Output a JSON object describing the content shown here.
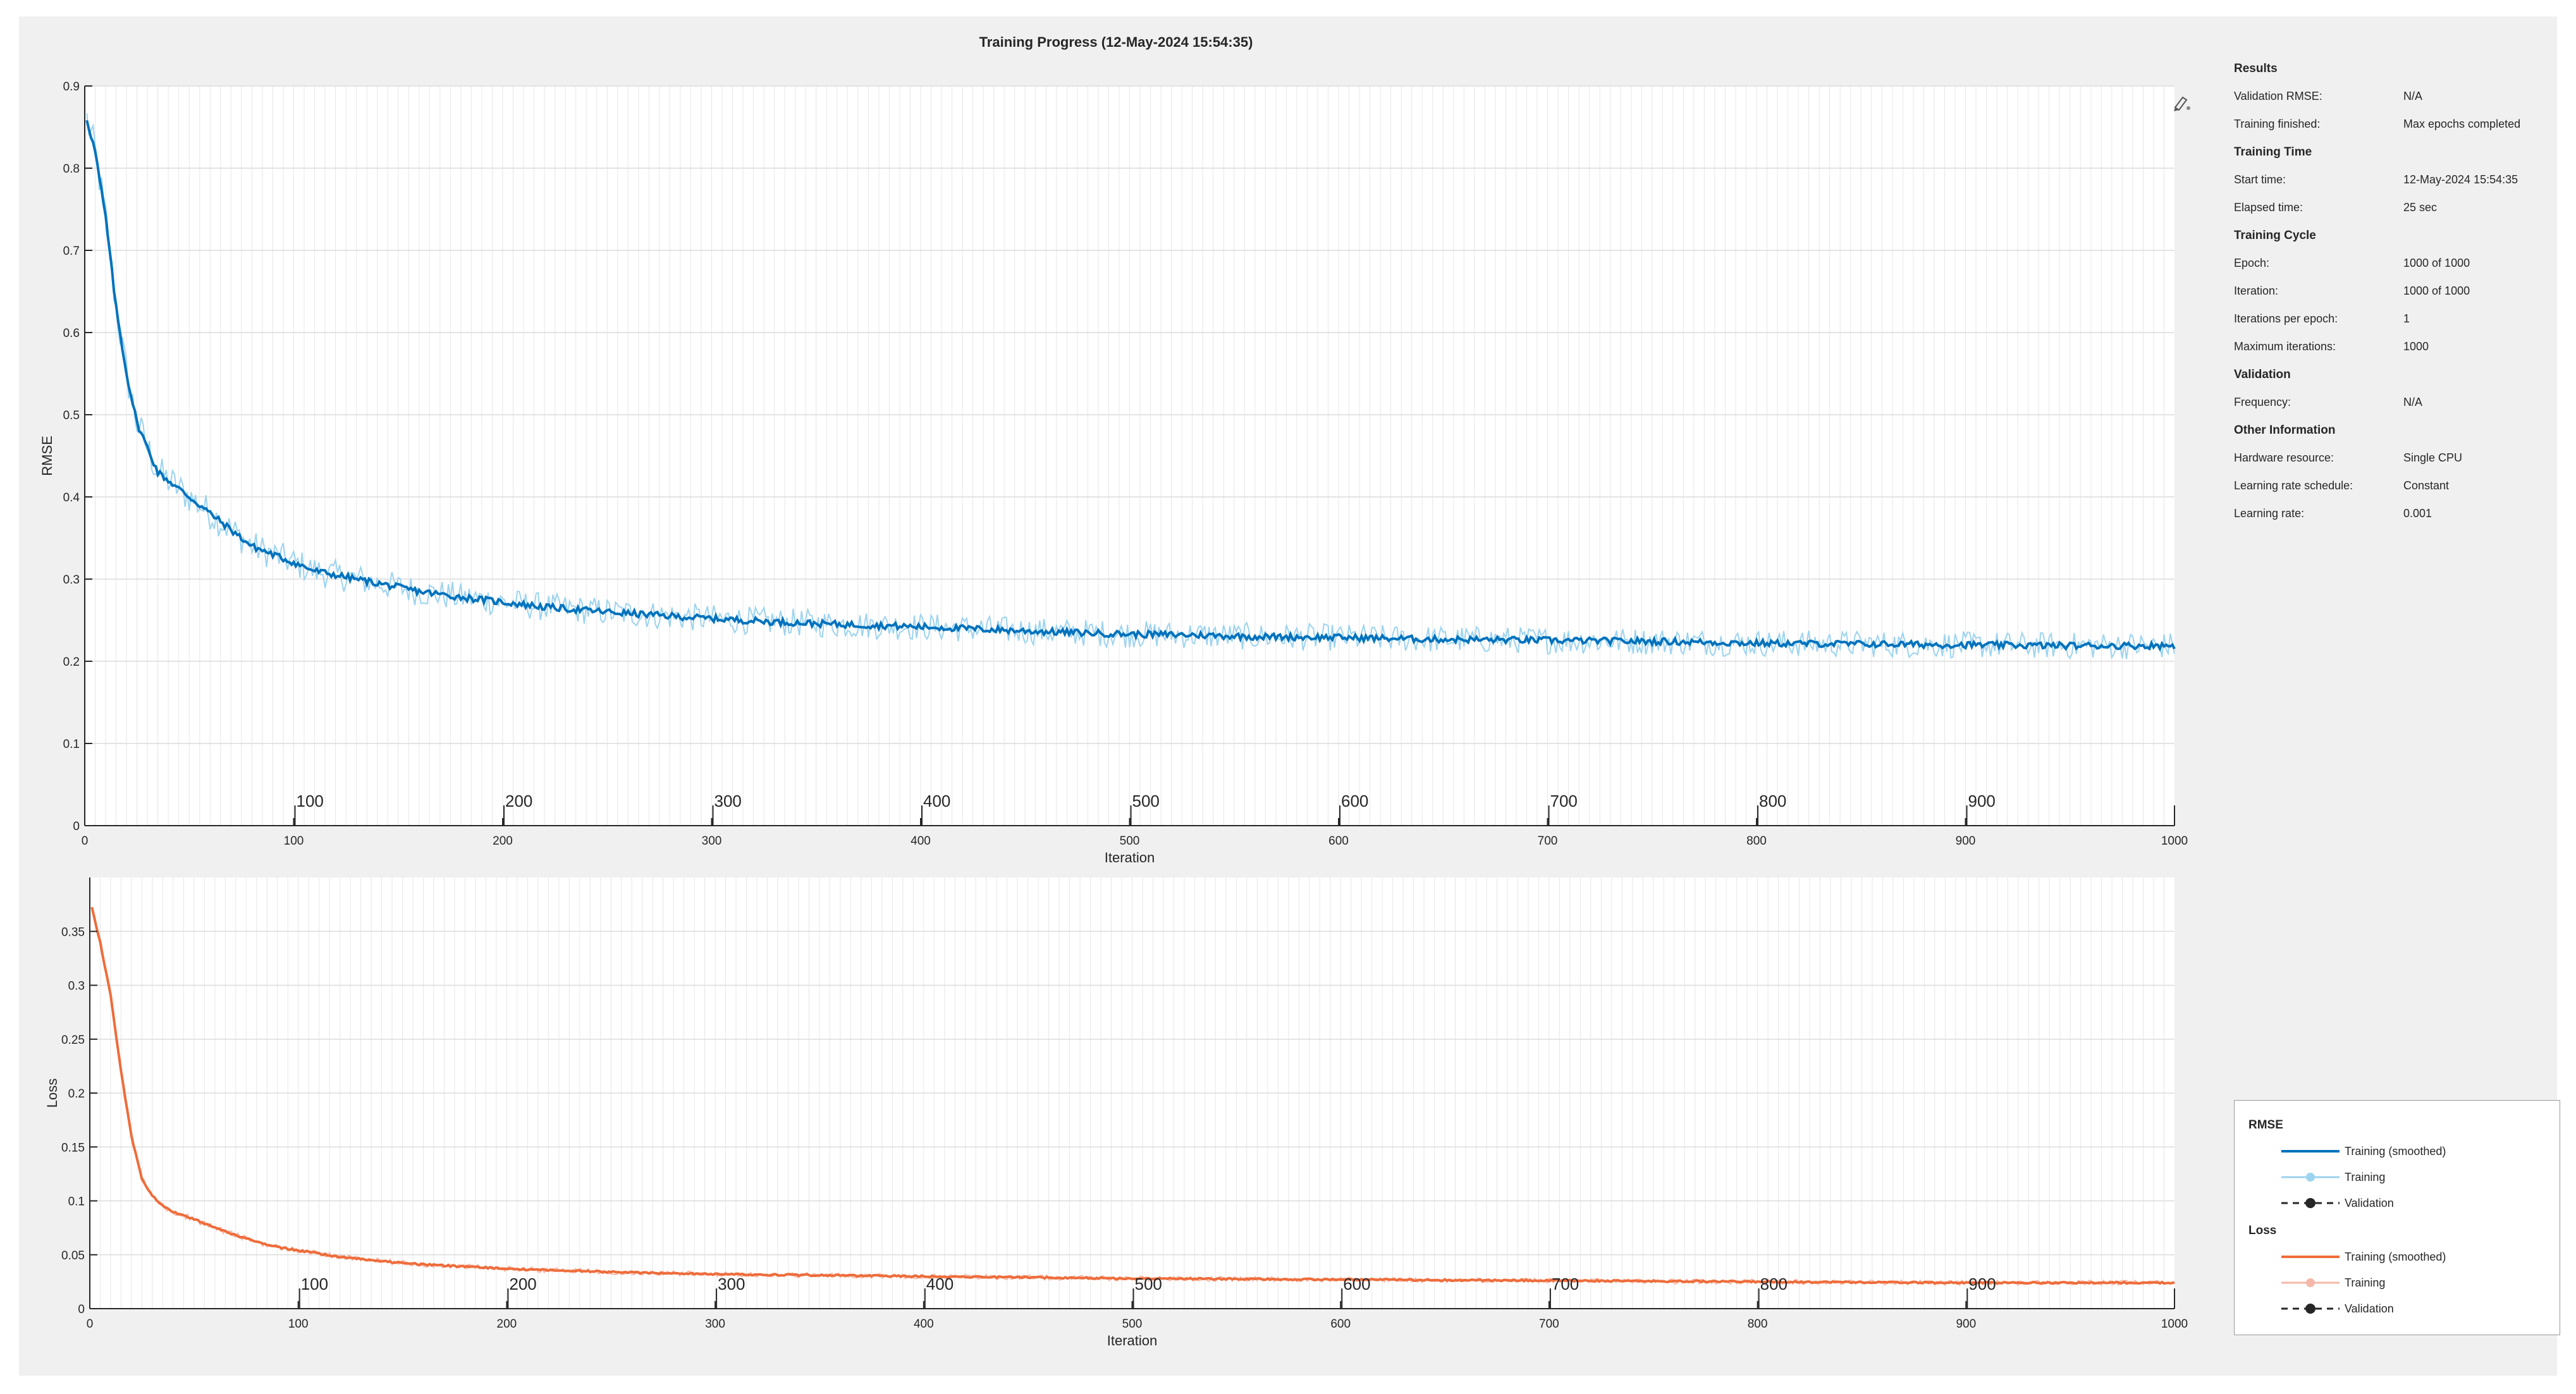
{
  "window": {
    "title": "Training Progress (12-May-2024 15:54:35)"
  },
  "colors": {
    "rmse_smoothed": "#0072BD",
    "rmse_raw": "#9cd3ef",
    "loss_smoothed": "#ee6c3a",
    "loss_raw": "#f5b8a8",
    "validation": "#262626",
    "grid": "#d9d9d9"
  },
  "axes_toolbar": {
    "icon": "brush-icon"
  },
  "chart_data": [
    {
      "type": "line",
      "name": "rmse-plot",
      "xlabel": "Iteration",
      "ylabel": "RMSE",
      "xlim": [
        0,
        1000
      ],
      "ylim": [
        0,
        0.9
      ],
      "xticks": [
        0,
        100,
        200,
        300,
        400,
        500,
        600,
        700,
        800,
        900,
        1000
      ],
      "yticks": [
        0,
        0.1,
        0.2,
        0.3,
        0.4,
        0.5,
        0.6,
        0.7,
        0.8,
        0.9
      ],
      "epoch_ticks": [
        100,
        200,
        300,
        400,
        500,
        600,
        700,
        800,
        900
      ],
      "grid": true,
      "series": [
        {
          "name": "Training (smoothed)",
          "x": [
            0,
            5,
            10,
            15,
            20,
            25,
            30,
            35,
            40,
            50,
            60,
            70,
            80,
            90,
            100,
            110,
            120,
            140,
            160,
            180,
            200,
            220,
            250,
            280,
            300,
            330,
            360,
            400,
            430,
            460,
            500,
            530,
            560,
            600,
            640,
            680,
            720,
            760,
            800,
            850,
            900,
            950,
            1000
          ],
          "y": [
            0.87,
            0.82,
            0.74,
            0.63,
            0.55,
            0.49,
            0.46,
            0.43,
            0.42,
            0.4,
            0.38,
            0.36,
            0.34,
            0.33,
            0.32,
            0.31,
            0.305,
            0.295,
            0.285,
            0.278,
            0.272,
            0.266,
            0.26,
            0.255,
            0.252,
            0.248,
            0.245,
            0.242,
            0.239,
            0.236,
            0.233,
            0.232,
            0.23,
            0.229,
            0.227,
            0.226,
            0.225,
            0.224,
            0.222,
            0.221,
            0.22,
            0.219,
            0.219
          ]
        }
      ]
    },
    {
      "type": "line",
      "name": "loss-plot",
      "xlabel": "Iteration",
      "ylabel": "Loss",
      "xlim": [
        0,
        1000
      ],
      "ylim": [
        0,
        0.4
      ],
      "xticks": [
        0,
        100,
        200,
        300,
        400,
        500,
        600,
        700,
        800,
        900,
        1000
      ],
      "yticks": [
        0,
        0.05,
        0.1,
        0.15,
        0.2,
        0.25,
        0.3,
        0.35
      ],
      "epoch_ticks": [
        100,
        200,
        300,
        400,
        500,
        600,
        700,
        800,
        900
      ],
      "grid": true,
      "series": [
        {
          "name": "Training (smoothed)",
          "x": [
            0,
            5,
            10,
            15,
            20,
            25,
            30,
            35,
            40,
            50,
            60,
            70,
            80,
            90,
            100,
            120,
            140,
            160,
            180,
            200,
            250,
            300,
            350,
            400,
            450,
            500,
            600,
            700,
            800,
            900,
            1000
          ],
          "y": [
            0.38,
            0.34,
            0.29,
            0.22,
            0.16,
            0.12,
            0.105,
            0.095,
            0.09,
            0.083,
            0.075,
            0.068,
            0.062,
            0.057,
            0.054,
            0.048,
            0.044,
            0.041,
            0.039,
            0.037,
            0.034,
            0.032,
            0.031,
            0.03,
            0.029,
            0.028,
            0.027,
            0.026,
            0.025,
            0.024,
            0.024
          ]
        }
      ]
    }
  ],
  "info_panel": {
    "sections": [
      {
        "title": "Results",
        "rows": [
          {
            "label": "Validation RMSE:",
            "value": "N/A"
          },
          {
            "label": "Training finished:",
            "value": "Max epochs completed"
          }
        ]
      },
      {
        "title": "Training Time",
        "rows": [
          {
            "label": "Start time:",
            "value": "12-May-2024 15:54:35"
          },
          {
            "label": "Elapsed time:",
            "value": "25 sec"
          }
        ]
      },
      {
        "title": "Training Cycle",
        "rows": [
          {
            "label": "Epoch:",
            "value": "1000 of 1000"
          },
          {
            "label": "Iteration:",
            "value": "1000 of 1000"
          },
          {
            "label": "Iterations per epoch:",
            "value": "1"
          },
          {
            "label": "Maximum iterations:",
            "value": "1000"
          }
        ]
      },
      {
        "title": "Validation",
        "rows": [
          {
            "label": "Frequency:",
            "value": "N/A"
          }
        ]
      },
      {
        "title": "Other Information",
        "rows": [
          {
            "label": "Hardware resource:",
            "value": "Single CPU"
          },
          {
            "label": "Learning rate schedule:",
            "value": "Constant"
          },
          {
            "label": "Learning rate:",
            "value": "0.001"
          }
        ]
      }
    ]
  },
  "legend": {
    "groups": [
      {
        "title": "RMSE",
        "items": [
          {
            "label": "Training (smoothed)",
            "style": "solid",
            "color": "#0072BD"
          },
          {
            "label": "Training",
            "style": "marker",
            "color": "#9cd3ef"
          },
          {
            "label": "Validation",
            "style": "dashed-marker",
            "color": "#262626"
          }
        ]
      },
      {
        "title": "Loss",
        "items": [
          {
            "label": "Training (smoothed)",
            "style": "solid",
            "color": "#ee6c3a"
          },
          {
            "label": "Training",
            "style": "marker",
            "color": "#f5b8a8"
          },
          {
            "label": "Validation",
            "style": "dashed-marker",
            "color": "#262626"
          }
        ]
      }
    ]
  }
}
